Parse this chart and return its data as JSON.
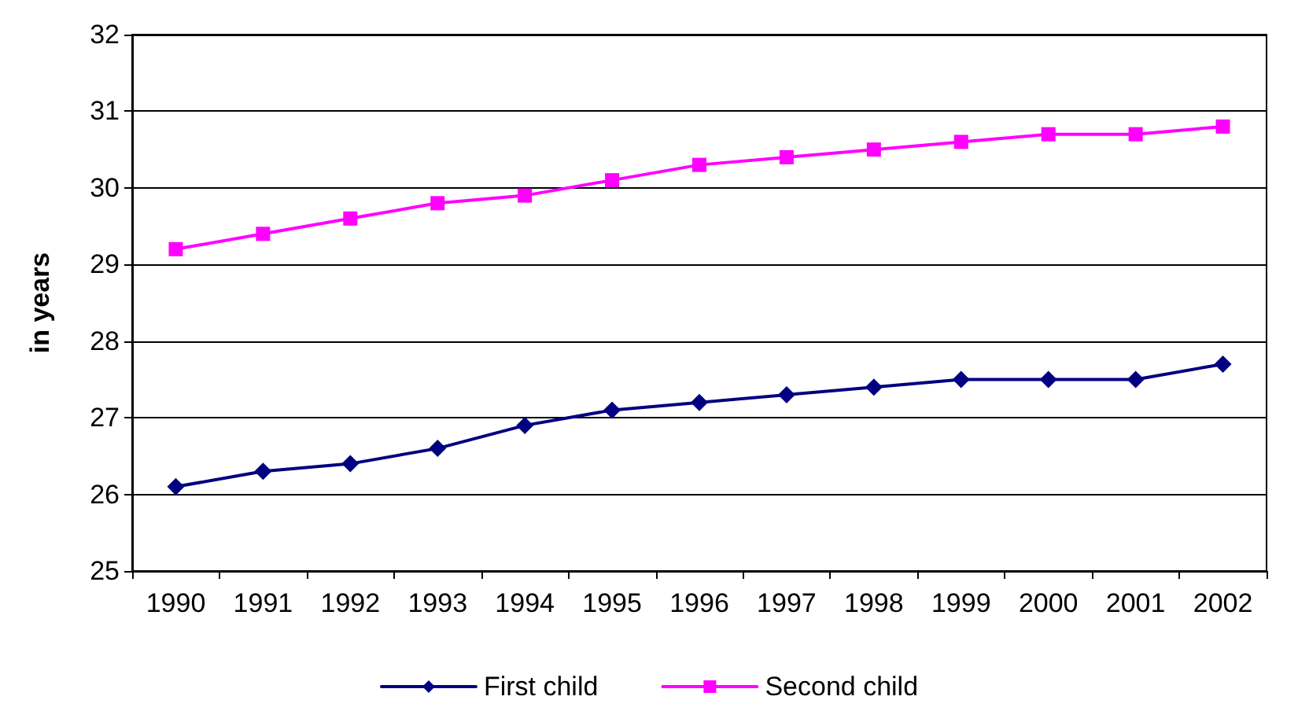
{
  "chart_data": {
    "type": "line",
    "ylabel": "in years",
    "categories": [
      "1990",
      "1991",
      "1992",
      "1993",
      "1994",
      "1995",
      "1996",
      "1997",
      "1998",
      "1999",
      "2000",
      "2001",
      "2002"
    ],
    "series": [
      {
        "name": "First child",
        "color": "#000080",
        "marker": "diamond",
        "values": [
          26.1,
          26.3,
          26.4,
          26.6,
          26.9,
          27.1,
          27.2,
          27.3,
          27.4,
          27.5,
          27.5,
          27.5,
          27.7
        ]
      },
      {
        "name": "Second child",
        "color": "#ff00ff",
        "marker": "square",
        "values": [
          29.2,
          29.4,
          29.6,
          29.8,
          29.9,
          30.1,
          30.3,
          30.4,
          30.5,
          30.6,
          30.7,
          30.7,
          30.8
        ]
      }
    ],
    "ylim": [
      25,
      32
    ],
    "yticks": [
      25,
      26,
      27,
      28,
      29,
      30,
      31,
      32
    ],
    "grid": "y",
    "legend": "bottom",
    "line_style": "solid"
  }
}
